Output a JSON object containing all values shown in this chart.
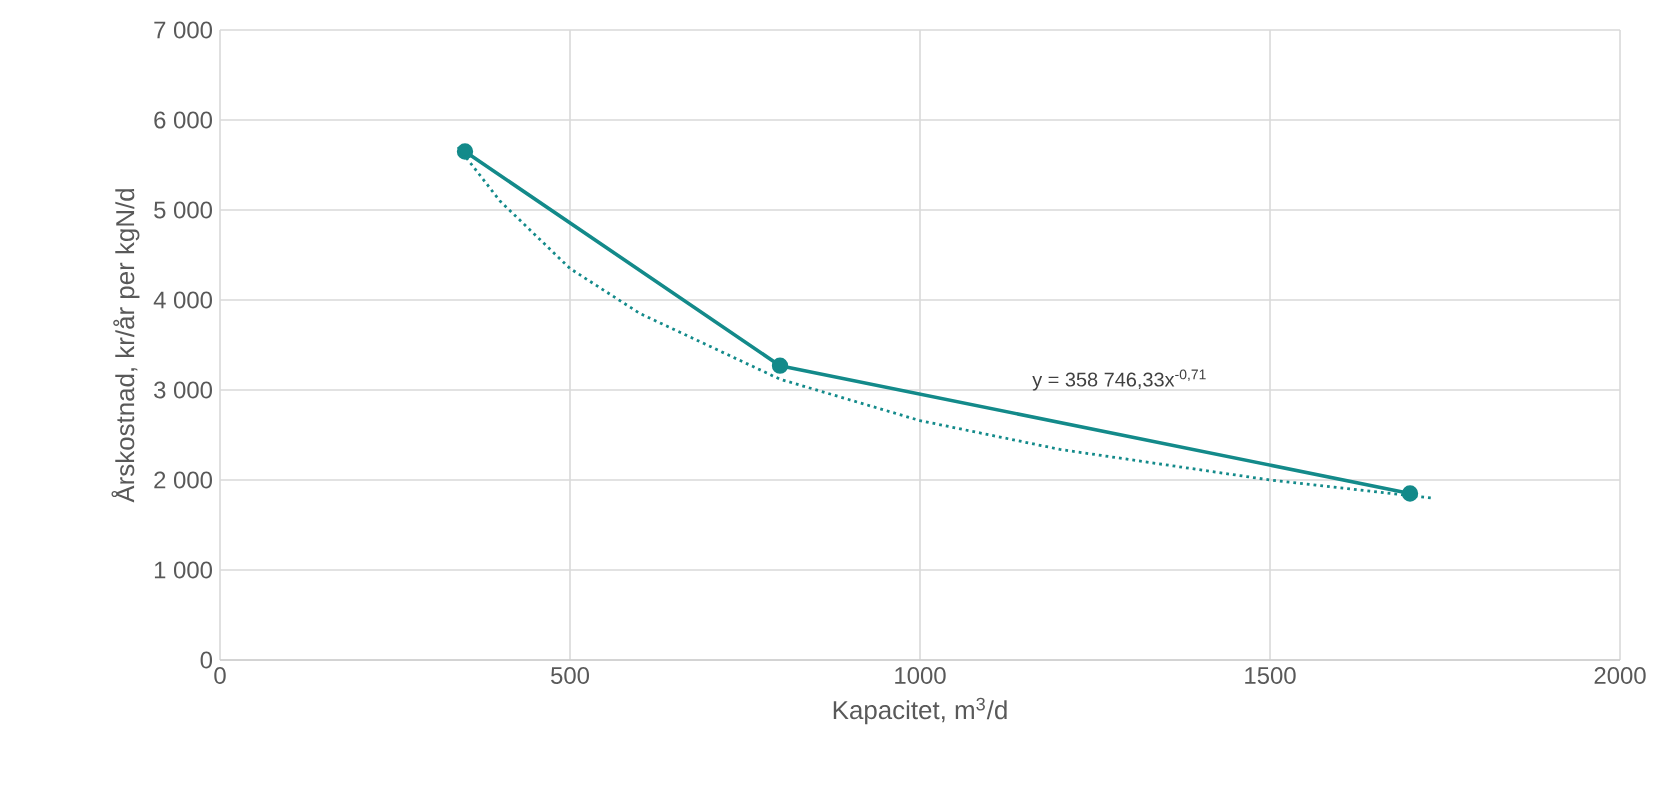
{
  "chart_data": {
    "type": "line",
    "xlabel": "Kapacitet, m$^{3}$/d",
    "ylabel": "Årskostnad, kr/år per kgN/d",
    "xlim": [
      0,
      2000
    ],
    "xticks": [
      0,
      500,
      1000,
      1500,
      2000
    ],
    "ylim": [
      0,
      7000
    ],
    "yticks": [
      0,
      {
        "value": 1000,
        "label": "1 000"
      },
      {
        "value": 2000,
        "label": "2 000"
      },
      {
        "value": 3000,
        "label": "3 000"
      },
      {
        "value": 4000,
        "label": "4 000"
      },
      {
        "value": 5000,
        "label": "5 000"
      },
      {
        "value": 6000,
        "label": "6 000"
      },
      {
        "value": 7000,
        "label": "7 000"
      }
    ],
    "grid": true,
    "series": [
      {
        "color": "#138a8a",
        "marker": "circle",
        "line_style": "solid",
        "x": [
          350,
          800,
          1700
        ],
        "values": [
          5650,
          3270,
          1850
        ]
      },
      {
        "color": "#138a8a",
        "marker": "none",
        "line_style": "dotted",
        "x": [
          340,
          400,
          500,
          600,
          800,
          1000,
          1200,
          1500,
          1730
        ],
        "values": [
          5700,
          5100,
          4350,
          3850,
          3120,
          2660,
          2340,
          2000,
          1800
        ]
      }
    ],
    "annotations": [
      {
        "text": "y = 358 746,33x$^{-0,71}$",
        "x": 1200,
        "y": 2340
      }
    ]
  }
}
